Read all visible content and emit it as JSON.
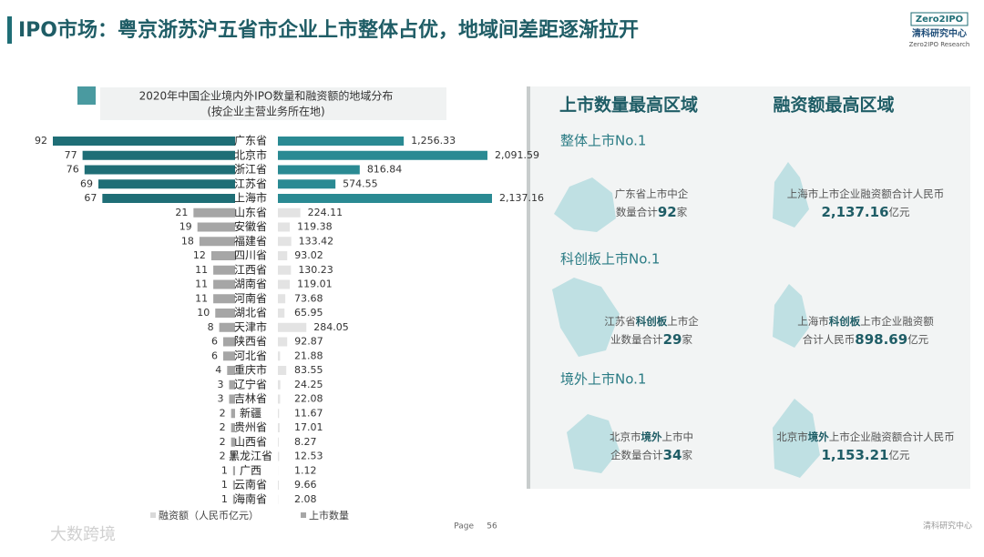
{
  "page": {
    "title": "IPO市场：粤京浙苏沪五省市企业上市整体占优，地域间差距逐渐拉开",
    "logo": {
      "brand": "Zero2IPO",
      "name": "清科研究中心",
      "sub": "Zero2IPO Research"
    },
    "footer": {
      "page_label": "Page",
      "page_number": "56",
      "org": "清科研究中心",
      "watermark": "大数跨境"
    }
  },
  "chart_data": {
    "type": "butterfly",
    "title": "2020年中国企业境内外IPO数量和融资额的地域分布",
    "subtitle": "(按企业主营业务所在地)",
    "categories": [
      "广东省",
      "北京市",
      "浙江省",
      "江苏省",
      "上海市",
      "山东省",
      "安徽省",
      "福建省",
      "四川省",
      "江西省",
      "湖南省",
      "河南省",
      "湖北省",
      "天津市",
      "陕西省",
      "河北省",
      "重庆市",
      "辽宁省",
      "吉林省",
      "新疆",
      "贵州省",
      "山西省",
      "黑龙江省",
      "广西",
      "云南省",
      "海南省"
    ],
    "series": [
      {
        "name": "上市数量",
        "side": "left",
        "color": "#a6a6a6",
        "colors": [
          "#1f6e76",
          "#1f6e76",
          "#1f6e76",
          "#1f6e76",
          "#1f6e76",
          "#a6a6a6",
          "#a6a6a6",
          "#a6a6a6",
          "#a6a6a6",
          "#a6a6a6",
          "#a6a6a6",
          "#a6a6a6",
          "#a6a6a6",
          "#a6a6a6",
          "#a6a6a6",
          "#a6a6a6",
          "#a6a6a6",
          "#a6a6a6",
          "#a6a6a6",
          "#a6a6a6",
          "#a6a6a6",
          "#a6a6a6",
          "#a6a6a6",
          "#a6a6a6",
          "#a6a6a6",
          "#a6a6a6"
        ],
        "values": [
          92,
          77,
          76,
          69,
          67,
          21,
          19,
          18,
          12,
          11,
          11,
          11,
          10,
          8,
          6,
          6,
          4,
          3,
          3,
          2,
          2,
          2,
          2,
          1,
          1,
          1
        ]
      },
      {
        "name": "融资额（人民币亿元）",
        "side": "right",
        "color": "#d9d9d9",
        "colors": [
          "#2a8a93",
          "#2a8a93",
          "#2a8a93",
          "#2a8a93",
          "#2a8a93",
          "#e3e3e3",
          "#e3e3e3",
          "#e3e3e3",
          "#e3e3e3",
          "#e3e3e3",
          "#e3e3e3",
          "#e3e3e3",
          "#e3e3e3",
          "#e3e3e3",
          "#e3e3e3",
          "#e3e3e3",
          "#e3e3e3",
          "#e3e3e3",
          "#e3e3e3",
          "#e3e3e3",
          "#e3e3e3",
          "#e3e3e3",
          "#e3e3e3",
          "#e3e3e3",
          "#e3e3e3",
          "#e3e3e3"
        ],
        "values": [
          1256.33,
          2091.59,
          816.84,
          574.55,
          2137.16,
          224.11,
          119.38,
          133.42,
          93.02,
          130.23,
          119.01,
          73.68,
          65.95,
          284.05,
          92.87,
          21.88,
          83.55,
          24.25,
          22.08,
          11.67,
          17.01,
          8.27,
          12.53,
          1.12,
          9.66,
          2.08
        ],
        "value_labels": [
          "1,256.33",
          "2,091.59",
          "816.84",
          "574.55",
          "2,137.16",
          "224.11",
          "119.38",
          "133.42",
          "93.02",
          "130.23",
          "119.01",
          "73.68",
          "65.95",
          "284.05",
          "92.87",
          "21.88",
          "83.55",
          "24.25",
          "22.08",
          "11.67",
          "17.01",
          "8.27",
          "12.53",
          "1.12",
          "9.66",
          "2.08"
        ]
      }
    ]
  },
  "panel": {
    "headers": [
      "上市数量最高区域",
      "融资额最高区域"
    ],
    "sections": [
      "整体上市No.1",
      "科创板上市No.1",
      "境外上市No.1"
    ],
    "cards": [
      {
        "text": [
          "广东省上市中企数量合计",
          "92",
          "家"
        ]
      },
      {
        "text": [
          "上海市上市企业融资额合计人民币",
          "2,137.16",
          "亿元"
        ]
      },
      {
        "text": [
          "江苏省",
          "科创板",
          "上市企业数量合计",
          "29",
          "家"
        ]
      },
      {
        "text": [
          "上海市",
          "科创板",
          "上市企业融资额合计人民币",
          "898.69",
          "亿元"
        ]
      },
      {
        "text": [
          "北京市",
          "境外",
          "上市中企数量合计",
          "34",
          "家"
        ]
      },
      {
        "text": [
          "北京市",
          "境外",
          "上市企业融资额合计人民币",
          "1,153.21",
          "亿元"
        ]
      }
    ]
  }
}
